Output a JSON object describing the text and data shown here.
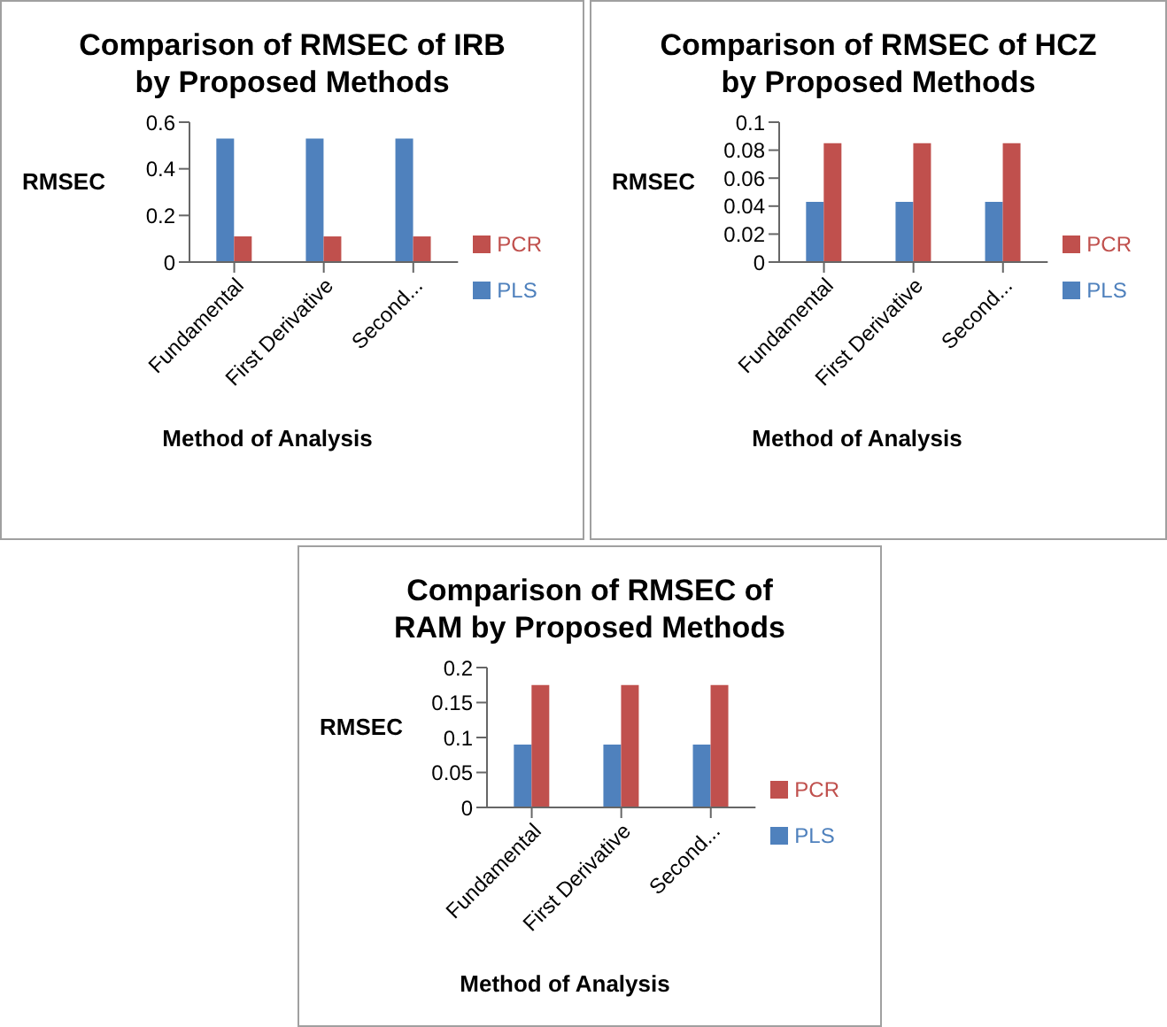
{
  "chart_data": [
    {
      "type": "bar",
      "title": "Comparison of RMSEC of IRB by Proposed Methods",
      "xlabel": "Method of Analysis",
      "ylabel": "RMSEC",
      "categories": [
        "Fundamental",
        "First Derivative",
        "Second..."
      ],
      "series": [
        {
          "name": "PLS",
          "color": "#4f81bd",
          "values": [
            0.53,
            0.53,
            0.53
          ]
        },
        {
          "name": "PCR",
          "color": "#c0504d",
          "values": [
            0.11,
            0.11,
            0.11
          ]
        }
      ],
      "ylim": [
        0,
        0.6
      ],
      "yticks": [
        0,
        0.2,
        0.4,
        0.6
      ],
      "legend": "right"
    },
    {
      "type": "bar",
      "title": "Comparison of RMSEC of HCZ by Proposed Methods",
      "xlabel": "Method of Analysis",
      "ylabel": "RMSEC",
      "categories": [
        "Fundamental",
        "First Derivative",
        "Second..."
      ],
      "series": [
        {
          "name": "PLS",
          "color": "#4f81bd",
          "values": [
            0.043,
            0.043,
            0.043
          ]
        },
        {
          "name": "PCR",
          "color": "#c0504d",
          "values": [
            0.085,
            0.085,
            0.085
          ]
        }
      ],
      "ylim": [
        0,
        0.1
      ],
      "yticks": [
        0,
        0.02,
        0.04,
        0.06,
        0.08,
        0.1
      ],
      "legend": "right"
    },
    {
      "type": "bar",
      "title": "Comparison of RMSEC of RAM by Proposed Methods",
      "xlabel": "Method of Analysis",
      "ylabel": "RMSEC",
      "categories": [
        "Fundamental",
        "First Derivative",
        "Second..."
      ],
      "series": [
        {
          "name": "PLS",
          "color": "#4f81bd",
          "values": [
            0.09,
            0.09,
            0.09
          ]
        },
        {
          "name": "PCR",
          "color": "#c0504d",
          "values": [
            0.175,
            0.175,
            0.175
          ]
        }
      ],
      "ylim": [
        0,
        0.2
      ],
      "yticks": [
        0,
        0.05,
        0.1,
        0.15,
        0.2
      ],
      "legend": "right"
    }
  ]
}
